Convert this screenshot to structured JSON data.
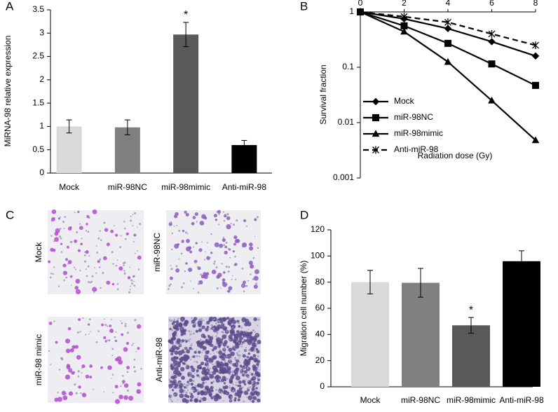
{
  "chart_data": [
    {
      "panel": "A",
      "type": "bar",
      "ylabel": "MiRNA-98 relative expression",
      "categories": [
        "Mock",
        "miR-98NC",
        "miR-98mimic",
        "Anti-miR-98"
      ],
      "values": [
        1.0,
        0.98,
        2.97,
        0.6
      ],
      "errors": [
        0.14,
        0.16,
        0.26,
        0.1
      ],
      "colors": [
        "#d9d9d9",
        "#808080",
        "#595959",
        "#000000"
      ],
      "ylim": [
        0,
        3.5
      ],
      "yticks": [
        0,
        0.5,
        1,
        1.5,
        2,
        2.5,
        3,
        3.5
      ],
      "annotations": [
        {
          "text": "*",
          "category": "miR-98mimic"
        }
      ]
    },
    {
      "panel": "B",
      "type": "line",
      "xlabel": "Radiation dose (Gy)",
      "ylabel": "Survival fraction",
      "x": [
        0,
        2,
        4,
        6,
        8
      ],
      "xlim": [
        0,
        8
      ],
      "xticks": [
        0,
        2,
        4,
        6,
        8
      ],
      "ylim": [
        0.001,
        1
      ],
      "yticks": [
        1,
        0.1,
        0.01,
        0.001
      ],
      "log_y": true,
      "legend": "lower left",
      "series": [
        {
          "name": "Mock",
          "color": "#000000",
          "marker": "diamond",
          "dashed": false,
          "values": [
            1,
            0.75,
            0.5,
            0.29,
            0.16
          ]
        },
        {
          "name": "miR-98NC",
          "color": "#000000",
          "marker": "square",
          "dashed": false,
          "values": [
            1,
            0.56,
            0.27,
            0.115,
            0.047
          ]
        },
        {
          "name": "miR-98mimic",
          "color": "#000000",
          "marker": "triangle",
          "dashed": false,
          "values": [
            1,
            0.44,
            0.125,
            0.025,
            0.0048
          ]
        },
        {
          "name": "Anti-miR-98",
          "color": "#000000",
          "marker": "star",
          "dashed": true,
          "values": [
            1,
            0.82,
            0.65,
            0.4,
            0.25
          ]
        }
      ]
    },
    {
      "panel": "D",
      "type": "bar",
      "ylabel": "Migration cell number (%)",
      "categories": [
        "Mock",
        "miR-98NC",
        "miR-98mimic",
        "Anti-miR-98"
      ],
      "values": [
        80,
        79.5,
        47,
        96
      ],
      "errors": [
        9,
        11,
        6,
        8
      ],
      "colors": [
        "#d9d9d9",
        "#808080",
        "#595959",
        "#000000"
      ],
      "ylim": [
        0,
        120
      ],
      "yticks": [
        0,
        20,
        40,
        60,
        80,
        100,
        120
      ],
      "annotations": [
        {
          "text": "*",
          "category": "miR-98mimic"
        }
      ]
    }
  ],
  "images": {
    "panel": "C",
    "labels": [
      "Mock",
      "miR-98NC",
      "miR-98 mimic",
      "Anti-miR-98"
    ]
  }
}
